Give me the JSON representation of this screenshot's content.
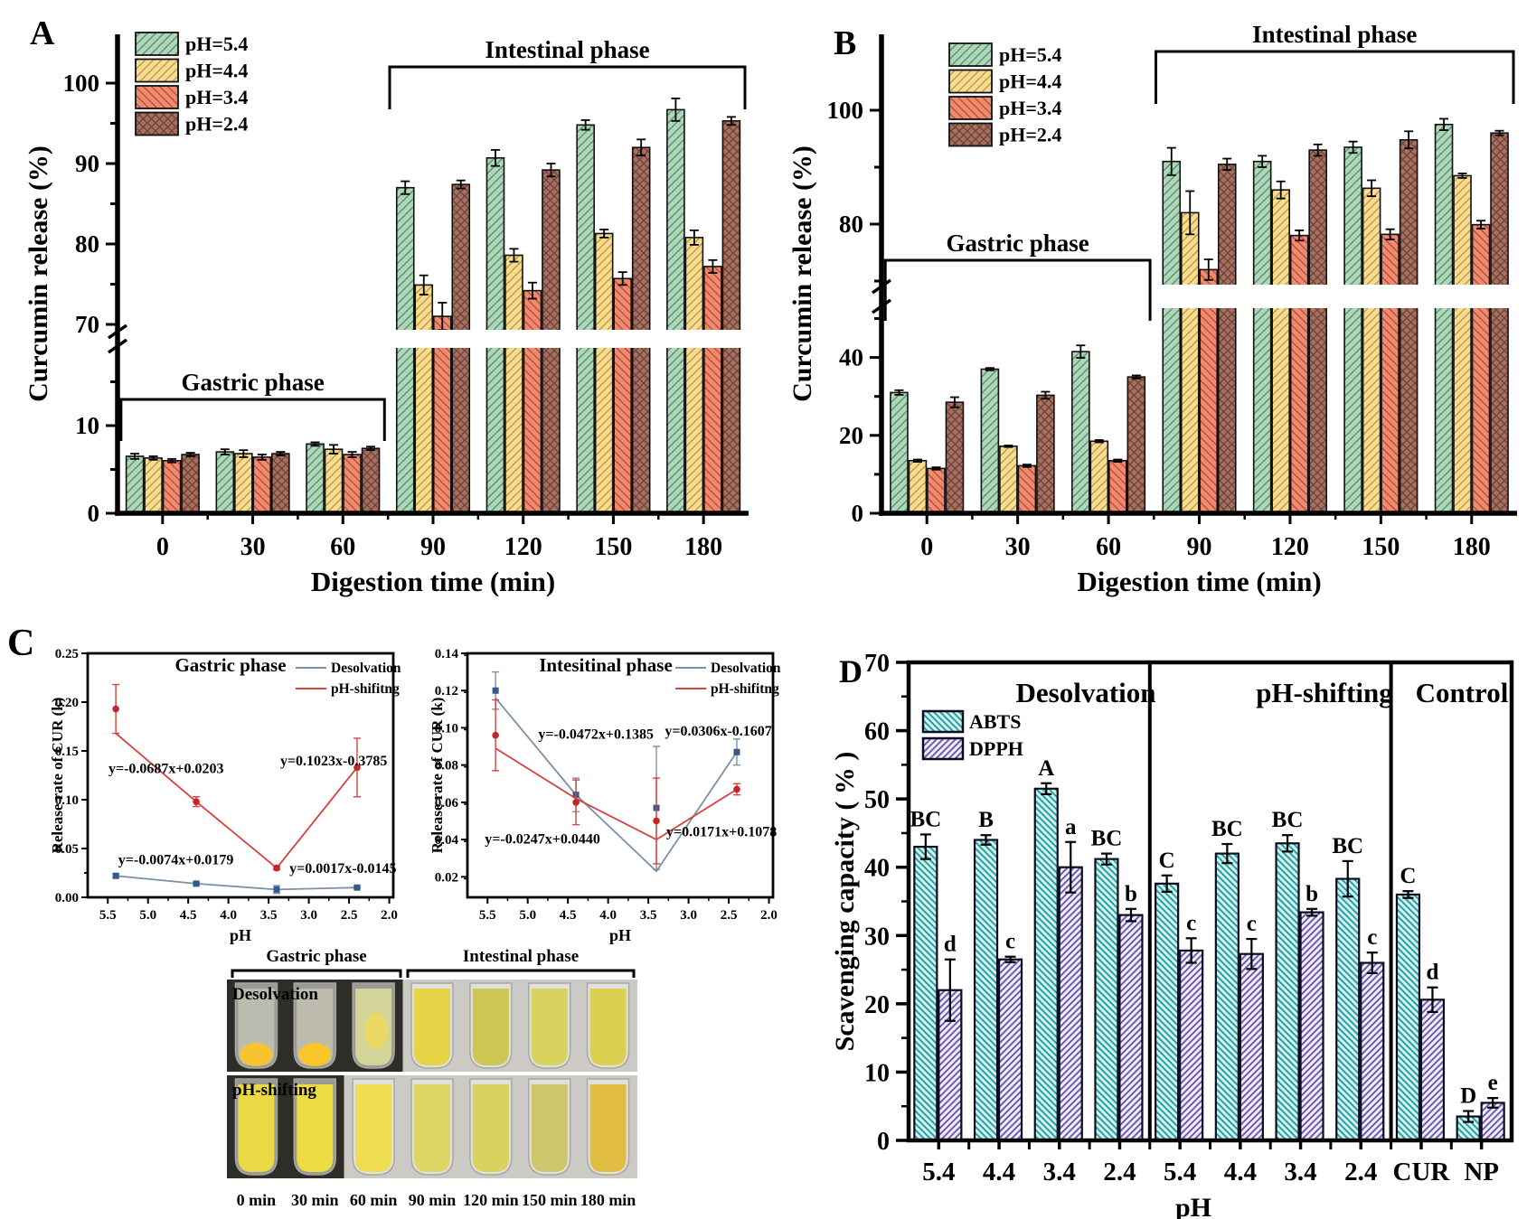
{
  "panels": {
    "a": {
      "label": "A"
    },
    "b": {
      "label": "B"
    },
    "c": {
      "label": "C"
    },
    "d": {
      "label": "D"
    }
  },
  "chart_data": [
    {
      "panel": "A",
      "type": "bar",
      "xlabel": "Digestion time (min)",
      "ylabel": "Curcumin release (%)",
      "annotations": {
        "gastric": "Gastric phase",
        "intestinal": "Intestinal phase"
      },
      "axis_break": true,
      "lower_ticks": [
        0,
        10
      ],
      "lower_minor": [
        5,
        15
      ],
      "upper_ticks": [
        70,
        80,
        90,
        100
      ],
      "upper_minor": [
        75,
        85,
        95
      ],
      "categories": [
        "0",
        "30",
        "60",
        "90",
        "120",
        "150",
        "180"
      ],
      "series": [
        {
          "name": "pH=5.4",
          "fill": "#aed6b8",
          "hatch": "/",
          "hatch_color": "#5d8f6f",
          "values": [
            6.5,
            7.0,
            7.9,
            87.0,
            90.7,
            94.8,
            96.7
          ],
          "errors": [
            0.3,
            0.3,
            0.2,
            0.8,
            1.0,
            0.6,
            1.4
          ]
        },
        {
          "name": "pH=4.4",
          "fill": "#f8dc92",
          "hatch": "/",
          "hatch_color": "#bf9a45",
          "values": [
            6.3,
            6.8,
            7.3,
            74.9,
            78.6,
            81.3,
            80.8
          ],
          "errors": [
            0.2,
            0.4,
            0.5,
            1.2,
            0.8,
            0.5,
            0.9
          ]
        },
        {
          "name": "pH=3.4",
          "fill": "#f08a6e",
          "hatch": "\\",
          "hatch_color": "#b5513b",
          "values": [
            6.0,
            6.4,
            6.7,
            71.0,
            74.2,
            75.7,
            77.2
          ],
          "errors": [
            0.2,
            0.3,
            0.3,
            1.7,
            1.0,
            0.8,
            0.8
          ]
        },
        {
          "name": "pH=2.4",
          "fill": "#a97062",
          "hatch": "x",
          "hatch_color": "#6f4538",
          "values": [
            6.7,
            6.8,
            7.4,
            87.4,
            89.2,
            92.0,
            95.3
          ],
          "errors": [
            0.2,
            0.2,
            0.2,
            0.5,
            0.8,
            1.0,
            0.5
          ]
        }
      ]
    },
    {
      "panel": "B",
      "type": "bar",
      "xlabel": "Digestion time (min)",
      "ylabel": "Curcumin release (%)",
      "annotations": {
        "gastric": "Gastric phase",
        "intestinal": "Intestinal phase"
      },
      "axis_break": true,
      "lower_ticks": [
        0,
        20,
        40
      ],
      "lower_minor": [
        10,
        30,
        50
      ],
      "upper_ticks": [
        80,
        100
      ],
      "upper_minor": [
        70,
        90
      ],
      "categories": [
        "0",
        "30",
        "60",
        "90",
        "120",
        "150",
        "180"
      ],
      "series": [
        {
          "name": "pH=5.4",
          "fill": "#aed6b8",
          "hatch": "/",
          "hatch_color": "#5d8f6f",
          "values": [
            31.0,
            37.0,
            41.5,
            91.0,
            91.0,
            93.5,
            97.5
          ],
          "errors": [
            0.6,
            0.3,
            1.6,
            2.4,
            1.0,
            1.0,
            1.0
          ]
        },
        {
          "name": "pH=4.4",
          "fill": "#f8dc92",
          "hatch": "/",
          "hatch_color": "#bf9a45",
          "values": [
            13.5,
            17.2,
            18.5,
            82.0,
            86.0,
            86.3,
            88.5
          ],
          "errors": [
            0.3,
            0.2,
            0.3,
            3.8,
            1.5,
            1.4,
            0.4
          ]
        },
        {
          "name": "pH=3.4",
          "fill": "#f08a6e",
          "hatch": "\\",
          "hatch_color": "#b5513b",
          "values": [
            11.5,
            12.2,
            13.5,
            72.0,
            78.0,
            78.2,
            79.9
          ],
          "errors": [
            0.3,
            0.3,
            0.3,
            1.8,
            0.9,
            0.9,
            0.7
          ]
        },
        {
          "name": "pH=2.4",
          "fill": "#a97062",
          "hatch": "x",
          "hatch_color": "#6f4538",
          "values": [
            28.5,
            30.3,
            35.0,
            90.5,
            93.0,
            94.8,
            96.0
          ],
          "errors": [
            1.3,
            0.9,
            0.4,
            1.0,
            1.0,
            1.5,
            0.4
          ]
        }
      ]
    },
    {
      "panel": "C-gastric",
      "type": "line",
      "title": "Gastric phase",
      "xlabel": "pH",
      "ylabel": "Release rate of CUR (k)",
      "x_ticks": [
        5.5,
        5.0,
        4.5,
        4.0,
        3.5,
        3.0,
        2.5,
        2.0
      ],
      "x_reversed": true,
      "ylim": [
        0,
        0.25
      ],
      "y_ticks": [
        0.0,
        0.05,
        0.1,
        0.15,
        0.2,
        0.25
      ],
      "series": [
        {
          "name": "Desolvation",
          "color": "#7b8fa5",
          "marker_color": "#34598f",
          "marker": "square",
          "x": [
            5.4,
            4.4,
            3.4,
            2.4
          ],
          "y": [
            0.022,
            0.014,
            0.008,
            0.01
          ],
          "line_y": [
            0.022,
            0.014,
            0.008,
            0.01
          ],
          "errors": [
            0.002,
            0.001,
            0.004,
            0.001
          ]
        },
        {
          "name": "pH-shifitng",
          "color": "#d94040",
          "marker_color": "#c22626",
          "marker": "circle",
          "x": [
            5.4,
            4.4,
            3.4,
            2.4
          ],
          "y": [
            0.193,
            0.098,
            0.03,
            0.133
          ],
          "line_y": [
            0.168,
            0.098,
            0.03,
            0.133
          ],
          "errors": [
            0.025,
            0.005,
            0.002,
            0.03
          ]
        }
      ],
      "equations": [
        {
          "text": "y=-0.0687x+0.0203",
          "fx": 0.068,
          "fy": 0.49
        },
        {
          "text": "y=0.1023x-0.3785",
          "fx": 0.63,
          "fy": 0.46
        },
        {
          "text": "y=-0.0074x+0.0179",
          "fx": 0.1,
          "fy": 0.865
        },
        {
          "text": "y=0.0017x-0.0145",
          "fx": 0.66,
          "fy": 0.9
        }
      ]
    },
    {
      "panel": "C-intestinal",
      "type": "line",
      "title": "Intesitinal phase",
      "xlabel": "pH",
      "ylabel": "Release rate of CUR (k)",
      "x_ticks": [
        5.5,
        5.0,
        4.5,
        4.0,
        3.5,
        3.0,
        2.5,
        2.0
      ],
      "x_reversed": true,
      "ylim": [
        0.009,
        0.14
      ],
      "y_ticks": [
        0.02,
        0.04,
        0.06,
        0.08,
        0.1,
        0.12,
        0.14
      ],
      "series": [
        {
          "name": "Desolvation",
          "color": "#7b8fa5",
          "marker_color": "#34598f",
          "marker": "square",
          "x": [
            5.4,
            4.4,
            3.4,
            2.4
          ],
          "y": [
            0.12,
            0.064,
            0.057,
            0.087
          ],
          "line_y": [
            0.116,
            0.064,
            0.023,
            0.087
          ],
          "errors": [
            0.01,
            0.009,
            0.033,
            0.007
          ]
        },
        {
          "name": "pH-shifitng",
          "color": "#d94040",
          "marker_color": "#c22626",
          "marker": "circle",
          "x": [
            5.4,
            4.4,
            3.4,
            2.4
          ],
          "y": [
            0.096,
            0.06,
            0.05,
            0.067
          ],
          "line_y": [
            0.089,
            0.062,
            0.04,
            0.067
          ],
          "errors": [
            0.019,
            0.012,
            0.023,
            0.003
          ]
        }
      ],
      "equations": [
        {
          "text": "y=-0.0472x+0.1385",
          "fx": 0.232,
          "fy": 0.35
        },
        {
          "text": "y=0.0306x-0.1607",
          "fx": 0.646,
          "fy": 0.337
        },
        {
          "text": "y=-0.0247x+0.0440",
          "fx": 0.057,
          "fy": 0.78
        },
        {
          "text": "y=0.0171x+0.1078",
          "fx": 0.651,
          "fy": 0.75
        }
      ]
    },
    {
      "panel": "D",
      "type": "bar",
      "xlabel": "pH",
      "ylabel": "Scavenging capacity ( % )",
      "ylim": [
        0,
        70
      ],
      "y_ticks": [
        0,
        10,
        20,
        30,
        40,
        50,
        60,
        70
      ],
      "group_labels": [
        "Desolvation",
        "pH-shifting",
        "Control"
      ],
      "categories": [
        "5.4",
        "4.4",
        "3.4",
        "2.4",
        "5.4",
        "4.4",
        "3.4",
        "2.4",
        "CUR",
        "NP"
      ],
      "series": [
        {
          "name": "ABTS",
          "fill": "#d8f1f1",
          "hatch": "\\",
          "hatch_color": "#23a2a2",
          "values": [
            43.0,
            44.0,
            51.5,
            41.2,
            37.6,
            42.0,
            43.5,
            38.3,
            36.0,
            3.5
          ],
          "errors": [
            1.8,
            0.7,
            0.8,
            0.8,
            1.2,
            1.4,
            1.2,
            2.6,
            0.5,
            0.8
          ],
          "letters": [
            "BC",
            "B",
            "A",
            "BC",
            "C",
            "BC",
            "BC",
            "BC",
            "C",
            "D"
          ]
        },
        {
          "name": "DPPH",
          "fill": "#f2effa",
          "hatch": "/",
          "hatch_color": "#6c5bb0",
          "values": [
            22.0,
            26.5,
            40.0,
            33.0,
            27.8,
            27.3,
            33.4,
            26.0,
            20.6,
            5.5
          ],
          "errors": [
            4.5,
            0.4,
            3.7,
            0.9,
            1.8,
            2.2,
            0.5,
            1.5,
            1.8,
            0.7
          ],
          "letters": [
            "d",
            "c",
            "a",
            "b",
            "c",
            "c",
            "b",
            "c",
            "d",
            "e"
          ]
        }
      ]
    }
  ],
  "photos": {
    "bracket_labels": [
      "Gastric phase",
      "Intestinal phase"
    ],
    "rows": [
      {
        "label": "Desolvation",
        "tubes": [
          {
            "type": "sediment",
            "liquid": "#e3e6cf",
            "sediment": "#f5c42f"
          },
          {
            "type": "sediment",
            "liquid": "#e6e4cb",
            "sediment": "#f8c62c"
          },
          {
            "type": "cloudy",
            "liquid": "#e0e298",
            "sediment": "#ecd95f"
          },
          {
            "type": "full",
            "liquid": "#e7d23d"
          },
          {
            "type": "full",
            "liquid": "#cdc54c"
          },
          {
            "type": "full",
            "liquid": "#d8d158"
          },
          {
            "type": "full",
            "liquid": "#d8cf49"
          }
        ]
      },
      {
        "label": "pH-shifting",
        "tubes": [
          {
            "type": "full",
            "liquid": "#eedc3f"
          },
          {
            "type": "full",
            "liquid": "#f0df3d"
          },
          {
            "type": "full",
            "liquid": "#eedb49"
          },
          {
            "type": "full",
            "liquid": "#dcd45f"
          },
          {
            "type": "full",
            "liquid": "#d8d059"
          },
          {
            "type": "full",
            "liquid": "#cbc463"
          },
          {
            "type": "full",
            "liquid": "#e1ba3b"
          }
        ]
      }
    ],
    "time_labels": [
      "0 min",
      "30 min",
      "60 min",
      "90 min",
      "120 min",
      "150 min",
      "180 min"
    ]
  }
}
